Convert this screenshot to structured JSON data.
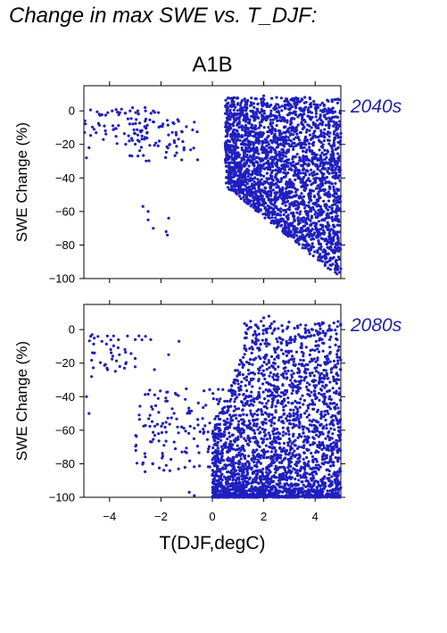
{
  "title": "Change in max SWE vs. T_DJF:",
  "colors": {
    "points": "#1f1fbf",
    "period_label": "#2323a8"
  },
  "chart_data": {
    "type": "scatter",
    "scenario": "A1B",
    "xlabel": "T(DJF,degC)",
    "ylabel": "SWE Change (%)",
    "xlim": [
      -5,
      5
    ],
    "ylim": [
      -100,
      15
    ],
    "xticks": [
      -4,
      -2,
      0,
      2,
      4
    ],
    "yticks": [
      0,
      -20,
      -40,
      -60,
      -80,
      -100
    ],
    "grid": false,
    "panels": [
      {
        "period": "2040s",
        "clusters": [
          {
            "note": "sparse cold points near zero change",
            "x": [
              -5.0,
              -2.0
            ],
            "y": [
              -20,
              2
            ],
            "n": 60
          },
          {
            "note": "scattered moderate decline",
            "x": [
              -3.5,
              -0.5
            ],
            "y": [
              -30,
              -5
            ],
            "n": 70
          },
          {
            "note": "main cloud",
            "x": [
              0.5,
              5.0
            ],
            "y": [
              -100,
              8
            ],
            "n": 2600
          }
        ],
        "points": [
          [
            -4.9,
            -28
          ],
          [
            -4.8,
            -22
          ],
          [
            -4.6,
            -11
          ],
          [
            -4.4,
            -2
          ],
          [
            -4.2,
            -9
          ],
          [
            -3.9,
            0
          ],
          [
            -3.6,
            -1
          ],
          [
            -3.2,
            0
          ],
          [
            -2.9,
            0
          ],
          [
            -2.6,
            0
          ],
          [
            -2.3,
            0
          ],
          [
            -2.1,
            -1
          ],
          [
            -2.7,
            -57
          ],
          [
            -2.5,
            -60
          ],
          [
            -2.5,
            -65
          ],
          [
            -2.3,
            -70
          ],
          [
            -1.7,
            -64
          ],
          [
            -1.8,
            -72
          ],
          [
            -1.75,
            -74
          ],
          [
            2.0,
            9
          ],
          [
            2.5,
            8
          ],
          [
            3.1,
            7
          ],
          [
            3.6,
            8
          ]
        ]
      },
      {
        "period": "2080s",
        "clusters": [
          {
            "note": "sparse cold points",
            "x": [
              -4.8,
              -2.2
            ],
            "y": [
              -25,
              -3
            ],
            "n": 40
          },
          {
            "note": "scattered moderate decline",
            "x": [
              -3.0,
              0.5
            ],
            "y": [
              -85,
              -35
            ],
            "n": 150
          },
          {
            "note": "main cloud",
            "x": [
              0.0,
              5.0
            ],
            "y": [
              -100,
              5
            ],
            "n": 2600
          }
        ],
        "points": [
          [
            -4.9,
            -40
          ],
          [
            -4.8,
            -50
          ],
          [
            -4.7,
            -28
          ],
          [
            -4.3,
            -7
          ],
          [
            -4.1,
            -23
          ],
          [
            -3.6,
            -22
          ],
          [
            -3.0,
            -6
          ],
          [
            -2.6,
            -4
          ],
          [
            -2.4,
            -6
          ],
          [
            -1.7,
            -15
          ],
          [
            -1.3,
            -7
          ],
          [
            2.0,
            7
          ],
          [
            2.2,
            8
          ],
          [
            1.9,
            5
          ],
          [
            3.9,
            0
          ],
          [
            -0.9,
            -97
          ],
          [
            -0.7,
            -99
          ]
        ]
      }
    ]
  }
}
